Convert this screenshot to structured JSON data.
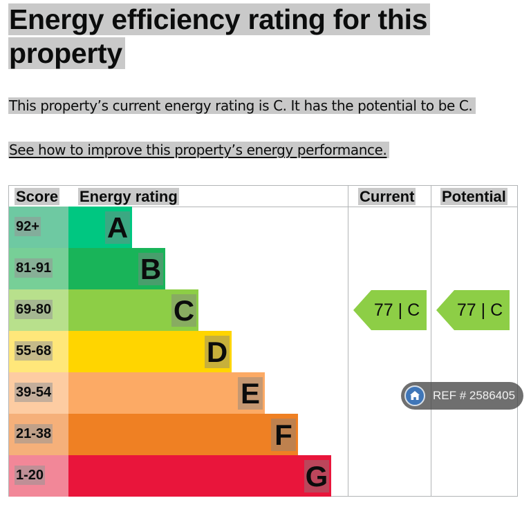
{
  "heading": "Energy efficiency rating for this property",
  "summary": "This property’s current energy rating is C. It has the potential to be C.",
  "improve_link": "See how to improve this property’s energy performance.",
  "table": {
    "headers": {
      "score": "Score",
      "rating": "Energy rating",
      "current": "Current",
      "potential": "Potential"
    },
    "bands": [
      {
        "score": "92+",
        "letter": "A",
        "color": "#00c781",
        "score_color": "#6ec9a2"
      },
      {
        "score": "81-91",
        "letter": "B",
        "color": "#19b459",
        "score_color": "#77cf97"
      },
      {
        "score": "69-80",
        "letter": "C",
        "color": "#8dce46",
        "score_color": "#b8e08c"
      },
      {
        "score": "55-68",
        "letter": "D",
        "color": "#ffd500",
        "score_color": "#ffe77a"
      },
      {
        "score": "39-54",
        "letter": "E",
        "color": "#fcaa65",
        "score_color": "#fdcca2"
      },
      {
        "score": "21-38",
        "letter": "F",
        "color": "#ef8023",
        "score_color": "#f5b07a"
      },
      {
        "score": "1-20",
        "letter": "G",
        "color": "#e9153b",
        "score_color": "#f28798"
      }
    ],
    "current": {
      "value": "77 |  C",
      "band": "C",
      "color": "#8dce46"
    },
    "potential": {
      "value": "77 |  C",
      "band": "C",
      "color": "#8dce46"
    }
  },
  "watermark": {
    "text": "REF # 2586405",
    "icon": "home-icon"
  }
}
